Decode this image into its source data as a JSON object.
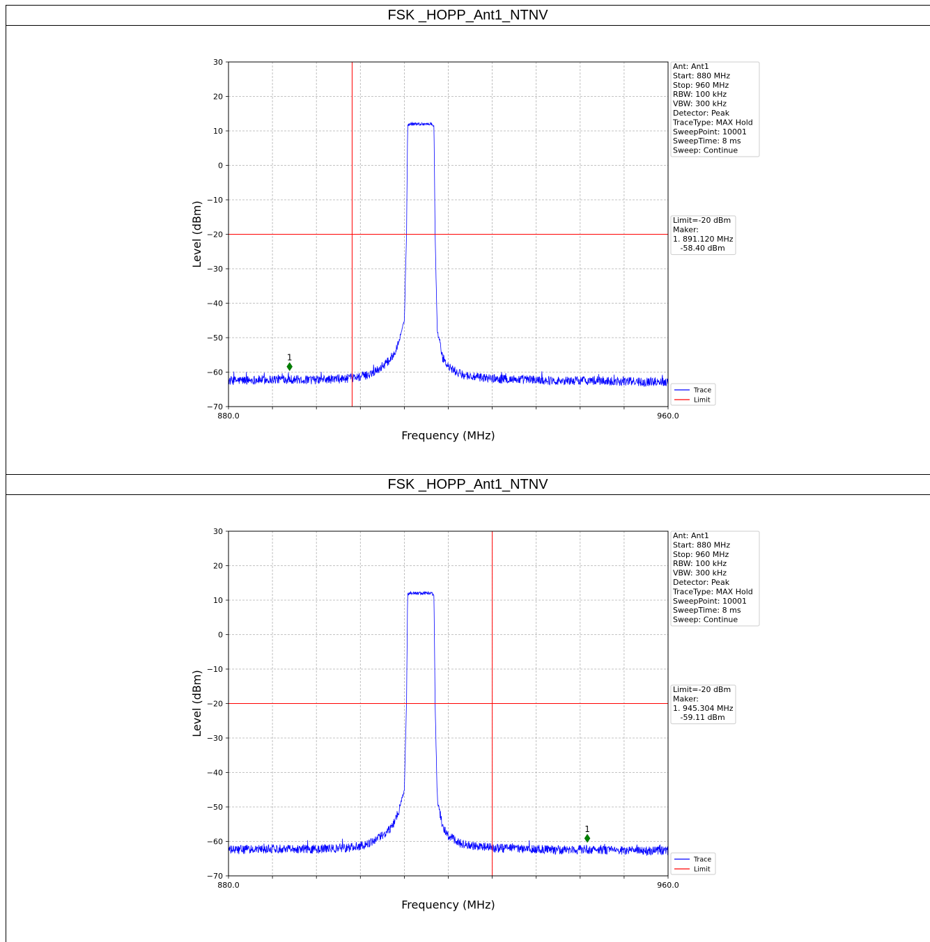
{
  "panels": [
    {
      "title": "FSK _HOPP_Ant1_NTNV",
      "info_box": [
        "Ant: Ant1",
        "Start: 880 MHz",
        "Stop: 960 MHz",
        "RBW: 100 kHz",
        "VBW: 300 kHz",
        "Detector: Peak",
        "TraceType: MAX Hold",
        "SweepPoint: 10001",
        "SweepTime: 8 ms",
        "Sweep: Continue"
      ],
      "marker_box": [
        "Limit=-20 dBm",
        "Maker:",
        "1. 891.120 MHz",
        "   -58.40 dBm"
      ],
      "legend": [
        "Trace",
        "Limit"
      ],
      "chart_data": {
        "type": "line",
        "xlabel": "Frequency (MHz)",
        "ylabel": "Level (dBm)",
        "xlim": [
          880,
          960
        ],
        "ylim": [
          -70,
          30
        ],
        "x_tick_labels": [
          "880.0",
          "960.0"
        ],
        "y_ticks": [
          30,
          20,
          10,
          0,
          -10,
          -20,
          -30,
          -40,
          -50,
          -60,
          -70
        ],
        "grid": true,
        "limit_dbm": -20,
        "vertical_marker_mhz": 902.5,
        "marker": {
          "label": "1",
          "freq_mhz": 891.12,
          "level_dbm": -58.4
        },
        "series": [
          {
            "name": "Trace",
            "color": "#0000ff",
            "x": [
              880,
              890,
              895,
              900,
              902,
              905,
              907,
              909,
              910,
              911,
              912,
              912.4,
              912.6,
              913,
              917,
              917.4,
              917.6,
              918,
              919,
              920,
              922,
              925,
              930,
              935,
              940,
              945,
              950,
              955,
              960
            ],
            "y": [
              -62.5,
              -62,
              -62.3,
              -62,
              -61.8,
              -61,
              -59.5,
              -57,
              -55,
              -51,
              -45,
              -20,
              11.5,
              12,
              12,
              11.5,
              -20,
              -48,
              -56,
              -58.5,
              -60.5,
              -61.5,
              -62,
              -62.2,
              -62.5,
              -62.4,
              -62.6,
              -62.8,
              -62.7
            ]
          },
          {
            "name": "Limit",
            "color": "#ff0000",
            "x": [
              880,
              960
            ],
            "y": [
              -20,
              -20
            ]
          }
        ]
      }
    },
    {
      "title": "FSK _HOPP_Ant1_NTNV",
      "info_box": [
        "Ant: Ant1",
        "Start: 880 MHz",
        "Stop: 960 MHz",
        "RBW: 100 kHz",
        "VBW: 300 kHz",
        "Detector: Peak",
        "TraceType: MAX Hold",
        "SweepPoint: 10001",
        "SweepTime: 8 ms",
        "Sweep: Continue"
      ],
      "marker_box": [
        "Limit=-20 dBm",
        "Maker:",
        "1. 945.304 MHz",
        "   -59.11 dBm"
      ],
      "legend": [
        "Trace",
        "Limit"
      ],
      "chart_data": {
        "type": "line",
        "xlabel": "Frequency (MHz)",
        "ylabel": "Level (dBm)",
        "xlim": [
          880,
          960
        ],
        "ylim": [
          -70,
          30
        ],
        "x_tick_labels": [
          "880.0",
          "960.0"
        ],
        "y_ticks": [
          30,
          20,
          10,
          0,
          -10,
          -20,
          -30,
          -40,
          -50,
          -60,
          -70
        ],
        "grid": true,
        "limit_dbm": -20,
        "vertical_marker_mhz": 928,
        "marker": {
          "label": "1",
          "freq_mhz": 945.304,
          "level_dbm": -59.11
        },
        "series": [
          {
            "name": "Trace",
            "color": "#0000ff",
            "x": [
              880,
              890,
              895,
              900,
              902,
              905,
              907,
              909,
              910,
              911,
              912,
              912.4,
              912.6,
              913,
              917,
              917.4,
              917.6,
              918,
              919,
              920,
              922,
              925,
              930,
              935,
              940,
              945,
              950,
              955,
              960
            ],
            "y": [
              -62.5,
              -62,
              -62.3,
              -62,
              -61.8,
              -61,
              -59.5,
              -57,
              -55,
              -51,
              -45,
              -20,
              11.5,
              12,
              12,
              11.5,
              -20,
              -48,
              -56,
              -58.5,
              -60.5,
              -61.5,
              -62,
              -62.2,
              -62.5,
              -62.4,
              -62.6,
              -62.8,
              -62.7
            ]
          },
          {
            "name": "Limit",
            "color": "#ff0000",
            "x": [
              880,
              960
            ],
            "y": [
              -20,
              -20
            ]
          }
        ]
      }
    }
  ]
}
